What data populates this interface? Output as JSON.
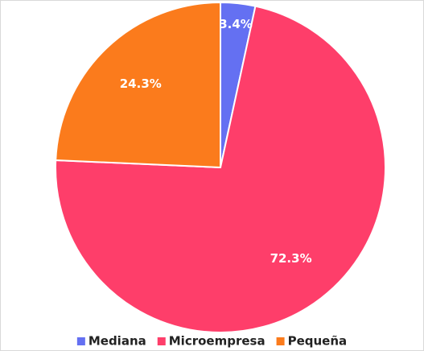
{
  "chart_data": {
    "type": "pie",
    "categories": [
      "Mediana",
      "Microempresa",
      "Pequeña"
    ],
    "values": [
      3.4,
      72.3,
      24.3
    ],
    "value_labels": [
      "3.4%",
      "72.3%",
      "24.3%"
    ],
    "colors": [
      "#6470f2",
      "#fe3e6a",
      "#fb7b1c"
    ],
    "legend": "bottom"
  }
}
